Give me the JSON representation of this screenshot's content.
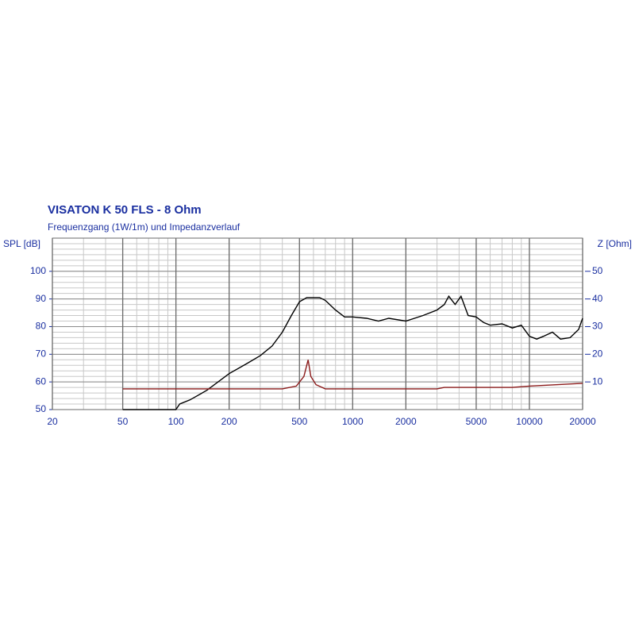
{
  "chart_data": {
    "type": "line",
    "title": "VISATON K 50 FLS - 8 Ohm",
    "subtitle": "Frequenzgang (1W/1m) und Impedanzverlauf",
    "y_label": "SPL [dB]",
    "y2_label": "Z [Ohm]",
    "log_x": true,
    "grid": true,
    "xlim": [
      20,
      20000
    ],
    "xticks": [
      20,
      50,
      100,
      200,
      500,
      1000,
      2000,
      5000,
      10000,
      20000
    ],
    "ylim": [
      50,
      112
    ],
    "yticks": [
      50,
      60,
      70,
      80,
      90,
      100
    ],
    "y2lim": [
      0,
      62
    ],
    "y2ticks": [
      10,
      20,
      30,
      40,
      50
    ],
    "series": [
      {
        "color": "#000000",
        "x": [
          50,
          100,
          105,
          120,
          150,
          200,
          250,
          300,
          350,
          400,
          450,
          500,
          550,
          650,
          700,
          800,
          900,
          1000,
          1200,
          1400,
          1600,
          2000,
          2500,
          3000,
          3300,
          3500,
          3800,
          4100,
          4500,
          5000,
          5500,
          6000,
          7000,
          8000,
          9000,
          10000,
          11000,
          12000,
          13500,
          15000,
          17000,
          19000,
          20000
        ],
        "values": [
          50,
          50,
          52,
          53.5,
          57,
          63,
          66.5,
          69.5,
          73,
          78,
          84,
          89,
          90.5,
          90.5,
          89.5,
          86,
          83.5,
          83.5,
          83,
          82,
          83,
          82,
          84,
          86,
          88,
          91,
          88,
          91,
          84,
          83.5,
          81.5,
          80.5,
          81,
          79.5,
          80.5,
          76.5,
          75.5,
          76.5,
          78,
          75.5,
          76,
          79,
          83
        ]
      },
      {
        "color": "#8b1a1a",
        "axis": "y2",
        "x": [
          50,
          400,
          480,
          530,
          560,
          580,
          620,
          700,
          2000,
          3000,
          3300,
          5000,
          8000,
          10000,
          20000
        ],
        "values": [
          7.5,
          7.5,
          8.5,
          12,
          18,
          12,
          9,
          7.5,
          7.5,
          7.5,
          8,
          8,
          8,
          8.5,
          9.5
        ]
      }
    ]
  }
}
